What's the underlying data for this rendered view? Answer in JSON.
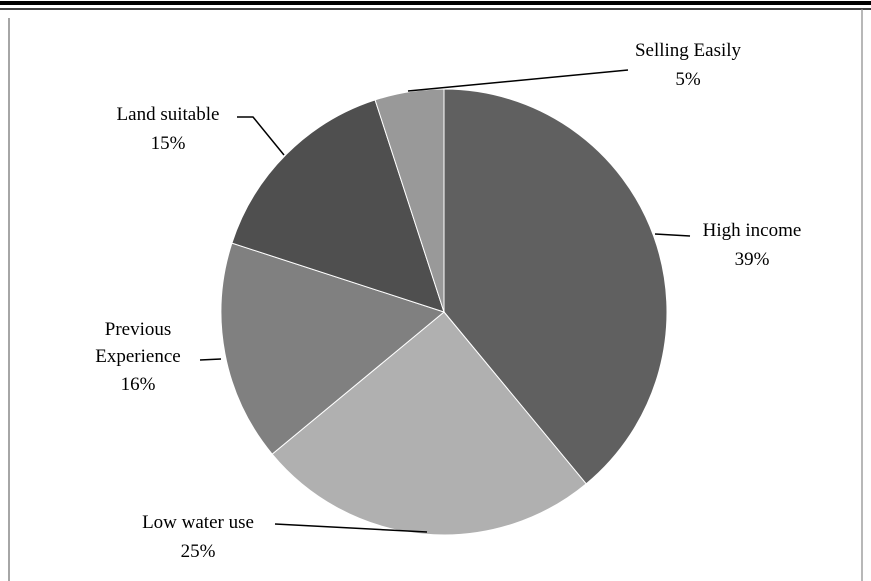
{
  "chart_data": {
    "type": "pie",
    "title": "",
    "legend": "none",
    "slices": [
      {
        "category": "High income",
        "value": 39,
        "label": "39%",
        "color": "#606060"
      },
      {
        "category": "Low water use",
        "value": 25,
        "label": "25%",
        "color": "#b0b0b0"
      },
      {
        "category": "Previous Experience",
        "value": 16,
        "label": "16%",
        "color": "#808080"
      },
      {
        "category": "Land suitable",
        "value": 15,
        "label": "15%",
        "color": "#4f4f4f"
      },
      {
        "category": "Selling Easily",
        "value": 5,
        "label": "5%",
        "color": "#999999"
      }
    ]
  }
}
